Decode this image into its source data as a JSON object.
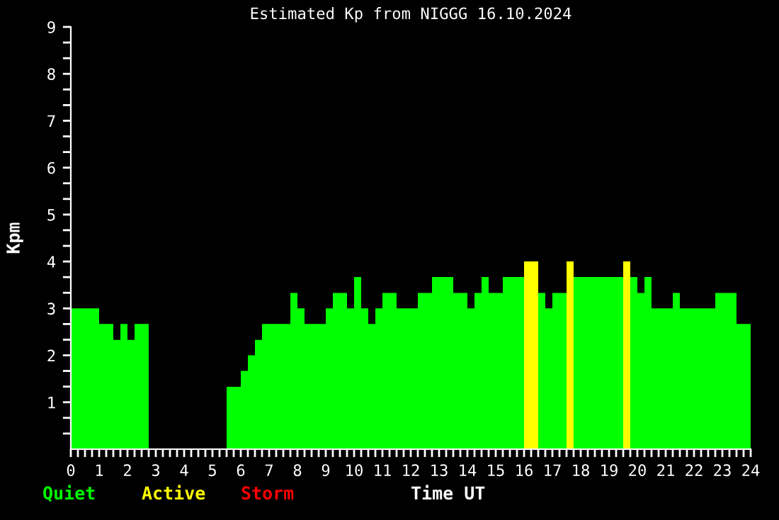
{
  "chart_data": {
    "type": "bar",
    "title": "Estimated Kp from NIGGG 16.10.2024",
    "xlabel": "Time UT",
    "ylabel": "Kpm",
    "x": [
      0.125,
      0.375,
      0.625,
      0.875,
      1.125,
      1.375,
      1.625,
      1.875,
      2.125,
      2.375,
      2.625,
      2.875,
      3.125,
      3.375,
      3.625,
      3.875,
      4.125,
      4.375,
      4.625,
      4.875,
      5.125,
      5.375,
      5.625,
      5.875,
      6.125,
      6.375,
      6.625,
      6.875,
      7.125,
      7.375,
      7.625,
      7.875,
      8.125,
      8.375,
      8.625,
      8.875,
      9.125,
      9.375,
      9.625,
      9.875,
      10.125,
      10.375,
      10.625,
      10.875,
      11.125,
      11.375,
      11.625,
      11.875,
      12.125,
      12.375,
      12.625,
      12.875,
      13.125,
      13.375,
      13.625,
      13.875,
      14.125,
      14.375,
      14.625,
      14.875,
      15.125,
      15.375,
      15.625,
      15.875,
      16.125,
      16.375,
      16.625,
      16.875,
      17.125,
      17.375,
      17.625,
      17.875,
      18.125,
      18.375,
      18.625,
      18.875,
      19.125,
      19.375,
      19.625,
      19.875,
      20.125,
      20.375,
      20.625,
      20.875,
      21.125,
      21.375,
      21.625,
      21.875,
      22.125,
      22.375,
      22.625,
      22.875,
      23.125,
      23.375,
      23.625,
      23.875
    ],
    "series": [
      {
        "name": "Quiet",
        "color": "#00ff00",
        "values": [
          3,
          3,
          3,
          3,
          2.67,
          2.67,
          2.33,
          2.67,
          2.33,
          2.67,
          2.67,
          0,
          0,
          0,
          0,
          0,
          0,
          0,
          0,
          0,
          0,
          0,
          1.33,
          1.33,
          1.67,
          2,
          2.33,
          2.67,
          2.67,
          2.67,
          2.67,
          3.33,
          3,
          2.67,
          2.67,
          2.67,
          3,
          3.33,
          3.33,
          3,
          3.67,
          3,
          2.67,
          3,
          3.33,
          3.33,
          3,
          3,
          3,
          3.33,
          3.33,
          3.67,
          3.67,
          3.67,
          3.33,
          3.33,
          3,
          3.33,
          3.67,
          3.33,
          3.33,
          3.67,
          3.67,
          3.67,
          null,
          null,
          3.33,
          3,
          3.33,
          3.33,
          null,
          3.67,
          3.67,
          3.67,
          3.67,
          3.67,
          3.67,
          3.67,
          null,
          3.67,
          3.33,
          3.67,
          3,
          3,
          3,
          3.33,
          3,
          3,
          3,
          3,
          3,
          3.33,
          3.33,
          3.33,
          2.67,
          2.67
        ]
      },
      {
        "name": "Active",
        "color": "#ffff00",
        "values": [
          null,
          null,
          null,
          null,
          null,
          null,
          null,
          null,
          null,
          null,
          null,
          null,
          null,
          null,
          null,
          null,
          null,
          null,
          null,
          null,
          null,
          null,
          null,
          null,
          null,
          null,
          null,
          null,
          null,
          null,
          null,
          null,
          null,
          null,
          null,
          null,
          null,
          null,
          null,
          null,
          null,
          null,
          null,
          null,
          null,
          null,
          null,
          null,
          null,
          null,
          null,
          null,
          null,
          null,
          null,
          null,
          null,
          null,
          null,
          null,
          null,
          null,
          null,
          null,
          4,
          4,
          null,
          null,
          null,
          null,
          4,
          null,
          null,
          null,
          null,
          null,
          null,
          null,
          4,
          null,
          null,
          null,
          null,
          null,
          null,
          null,
          null,
          null,
          null,
          null,
          null,
          null,
          null,
          null,
          null,
          null
        ]
      },
      {
        "name": "Storm",
        "color": "#ff0000",
        "values": [
          null,
          null,
          null,
          null,
          null,
          null,
          null,
          null,
          null,
          null,
          null,
          null,
          null,
          null,
          null,
          null,
          null,
          null,
          null,
          null,
          null,
          null,
          null,
          null,
          null,
          null,
          null,
          null,
          null,
          null,
          null,
          null,
          null,
          null,
          null,
          null,
          null,
          null,
          null,
          null,
          null,
          null,
          null,
          null,
          null,
          null,
          null,
          null,
          null,
          null,
          null,
          null,
          null,
          null,
          null,
          null,
          null,
          null,
          null,
          null,
          null,
          null,
          null,
          null,
          null,
          null,
          null,
          null,
          null,
          null,
          null,
          null,
          null,
          null,
          null,
          null,
          null,
          null,
          null,
          null,
          null,
          null,
          null,
          null,
          null,
          null,
          null,
          null,
          null,
          null,
          null,
          null,
          null,
          null,
          null,
          null
        ]
      }
    ],
    "xlim": [
      0,
      24
    ],
    "xticks": [
      0,
      {
        "value": 0.25,
        "label": null
      },
      {
        "value": 0.5,
        "label": null
      },
      {
        "value": 0.75,
        "label": null
      },
      1,
      {
        "value": 1.25,
        "label": null
      },
      {
        "value": 1.5,
        "label": null
      },
      {
        "value": 1.75,
        "label": null
      },
      2,
      {
        "value": 2.25,
        "label": null
      },
      {
        "value": 2.5,
        "label": null
      },
      {
        "value": 2.75,
        "label": null
      },
      3,
      {
        "value": 3.25,
        "label": null
      },
      {
        "value": 3.5,
        "label": null
      },
      {
        "value": 3.75,
        "label": null
      },
      4,
      {
        "value": 4.25,
        "label": null
      },
      {
        "value": 4.5,
        "label": null
      },
      {
        "value": 4.75,
        "label": null
      },
      5,
      {
        "value": 5.25,
        "label": null
      },
      {
        "value": 5.5,
        "label": null
      },
      {
        "value": 5.75,
        "label": null
      },
      6,
      {
        "value": 6.25,
        "label": null
      },
      {
        "value": 6.5,
        "label": null
      },
      {
        "value": 6.75,
        "label": null
      },
      7,
      {
        "value": 7.25,
        "label": null
      },
      {
        "value": 7.5,
        "label": null
      },
      {
        "value": 7.75,
        "label": null
      },
      8,
      {
        "value": 8.25,
        "label": null
      },
      {
        "value": 8.5,
        "label": null
      },
      {
        "value": 8.75,
        "label": null
      },
      9,
      {
        "value": 9.25,
        "label": null
      },
      {
        "value": 9.5,
        "label": null
      },
      {
        "value": 9.75,
        "label": null
      },
      10,
      {
        "value": 10.25,
        "label": null
      },
      {
        "value": 10.5,
        "label": null
      },
      {
        "value": 10.75,
        "label": null
      },
      11,
      {
        "value": 11.25,
        "label": null
      },
      {
        "value": 11.5,
        "label": null
      },
      {
        "value": 11.75,
        "label": null
      },
      12,
      {
        "value": 12.25,
        "label": null
      },
      {
        "value": 12.5,
        "label": null
      },
      {
        "value": 12.75,
        "label": null
      },
      13,
      {
        "value": 13.25,
        "label": null
      },
      {
        "value": 13.5,
        "label": null
      },
      {
        "value": 13.75,
        "label": null
      },
      14,
      {
        "value": 14.25,
        "label": null
      },
      {
        "value": 14.5,
        "label": null
      },
      {
        "value": 14.75,
        "label": null
      },
      15,
      {
        "value": 15.25,
        "label": null
      },
      {
        "value": 15.5,
        "label": null
      },
      {
        "value": 15.75,
        "label": null
      },
      16,
      {
        "value": 16.25,
        "label": null
      },
      {
        "value": 16.5,
        "label": null
      },
      {
        "value": 16.75,
        "label": null
      },
      17,
      {
        "value": 17.25,
        "label": null
      },
      {
        "value": 17.5,
        "label": null
      },
      {
        "value": 17.75,
        "label": null
      },
      18,
      {
        "value": 18.25,
        "label": null
      },
      {
        "value": 18.5,
        "label": null
      },
      {
        "value": 18.75,
        "label": null
      },
      19,
      {
        "value": 19.25,
        "label": null
      },
      {
        "value": 19.5,
        "label": null
      },
      {
        "value": 19.75,
        "label": null
      },
      20,
      {
        "value": 20.25,
        "label": null
      },
      {
        "value": 20.5,
        "label": null
      },
      {
        "value": 20.75,
        "label": null
      },
      21,
      {
        "value": 21.25,
        "label": null
      },
      {
        "value": 21.5,
        "label": null
      },
      {
        "value": 21.75,
        "label": null
      },
      22,
      {
        "value": 22.25,
        "label": null
      },
      {
        "value": 22.5,
        "label": null
      },
      {
        "value": 22.75,
        "label": null
      },
      23,
      {
        "value": 23.25,
        "label": null
      },
      {
        "value": 23.5,
        "label": null
      },
      {
        "value": 23.75,
        "label": null
      },
      24
    ],
    "ylim": [
      0,
      9
    ],
    "yticks": [
      {
        "value": 0.333,
        "label": null
      },
      {
        "value": 0.667,
        "label": null
      },
      1,
      {
        "value": 1.333,
        "label": null
      },
      {
        "value": 1.667,
        "label": null
      },
      2,
      {
        "value": 2.333,
        "label": null
      },
      {
        "value": 2.667,
        "label": null
      },
      3,
      {
        "value": 3.333,
        "label": null
      },
      {
        "value": 3.667,
        "label": null
      },
      4,
      {
        "value": 4.333,
        "label": null
      },
      {
        "value": 4.667,
        "label": null
      },
      5,
      {
        "value": 5.333,
        "label": null
      },
      {
        "value": 5.667,
        "label": null
      },
      6,
      {
        "value": 6.333,
        "label": null
      },
      {
        "value": 6.667,
        "label": null
      },
      7,
      {
        "value": 7.333,
        "label": null
      },
      {
        "value": 7.667,
        "label": null
      },
      8,
      {
        "value": 8.333,
        "label": null
      },
      {
        "value": 8.667,
        "label": null
      },
      9
    ],
    "grid": false,
    "legend": "bottom"
  }
}
